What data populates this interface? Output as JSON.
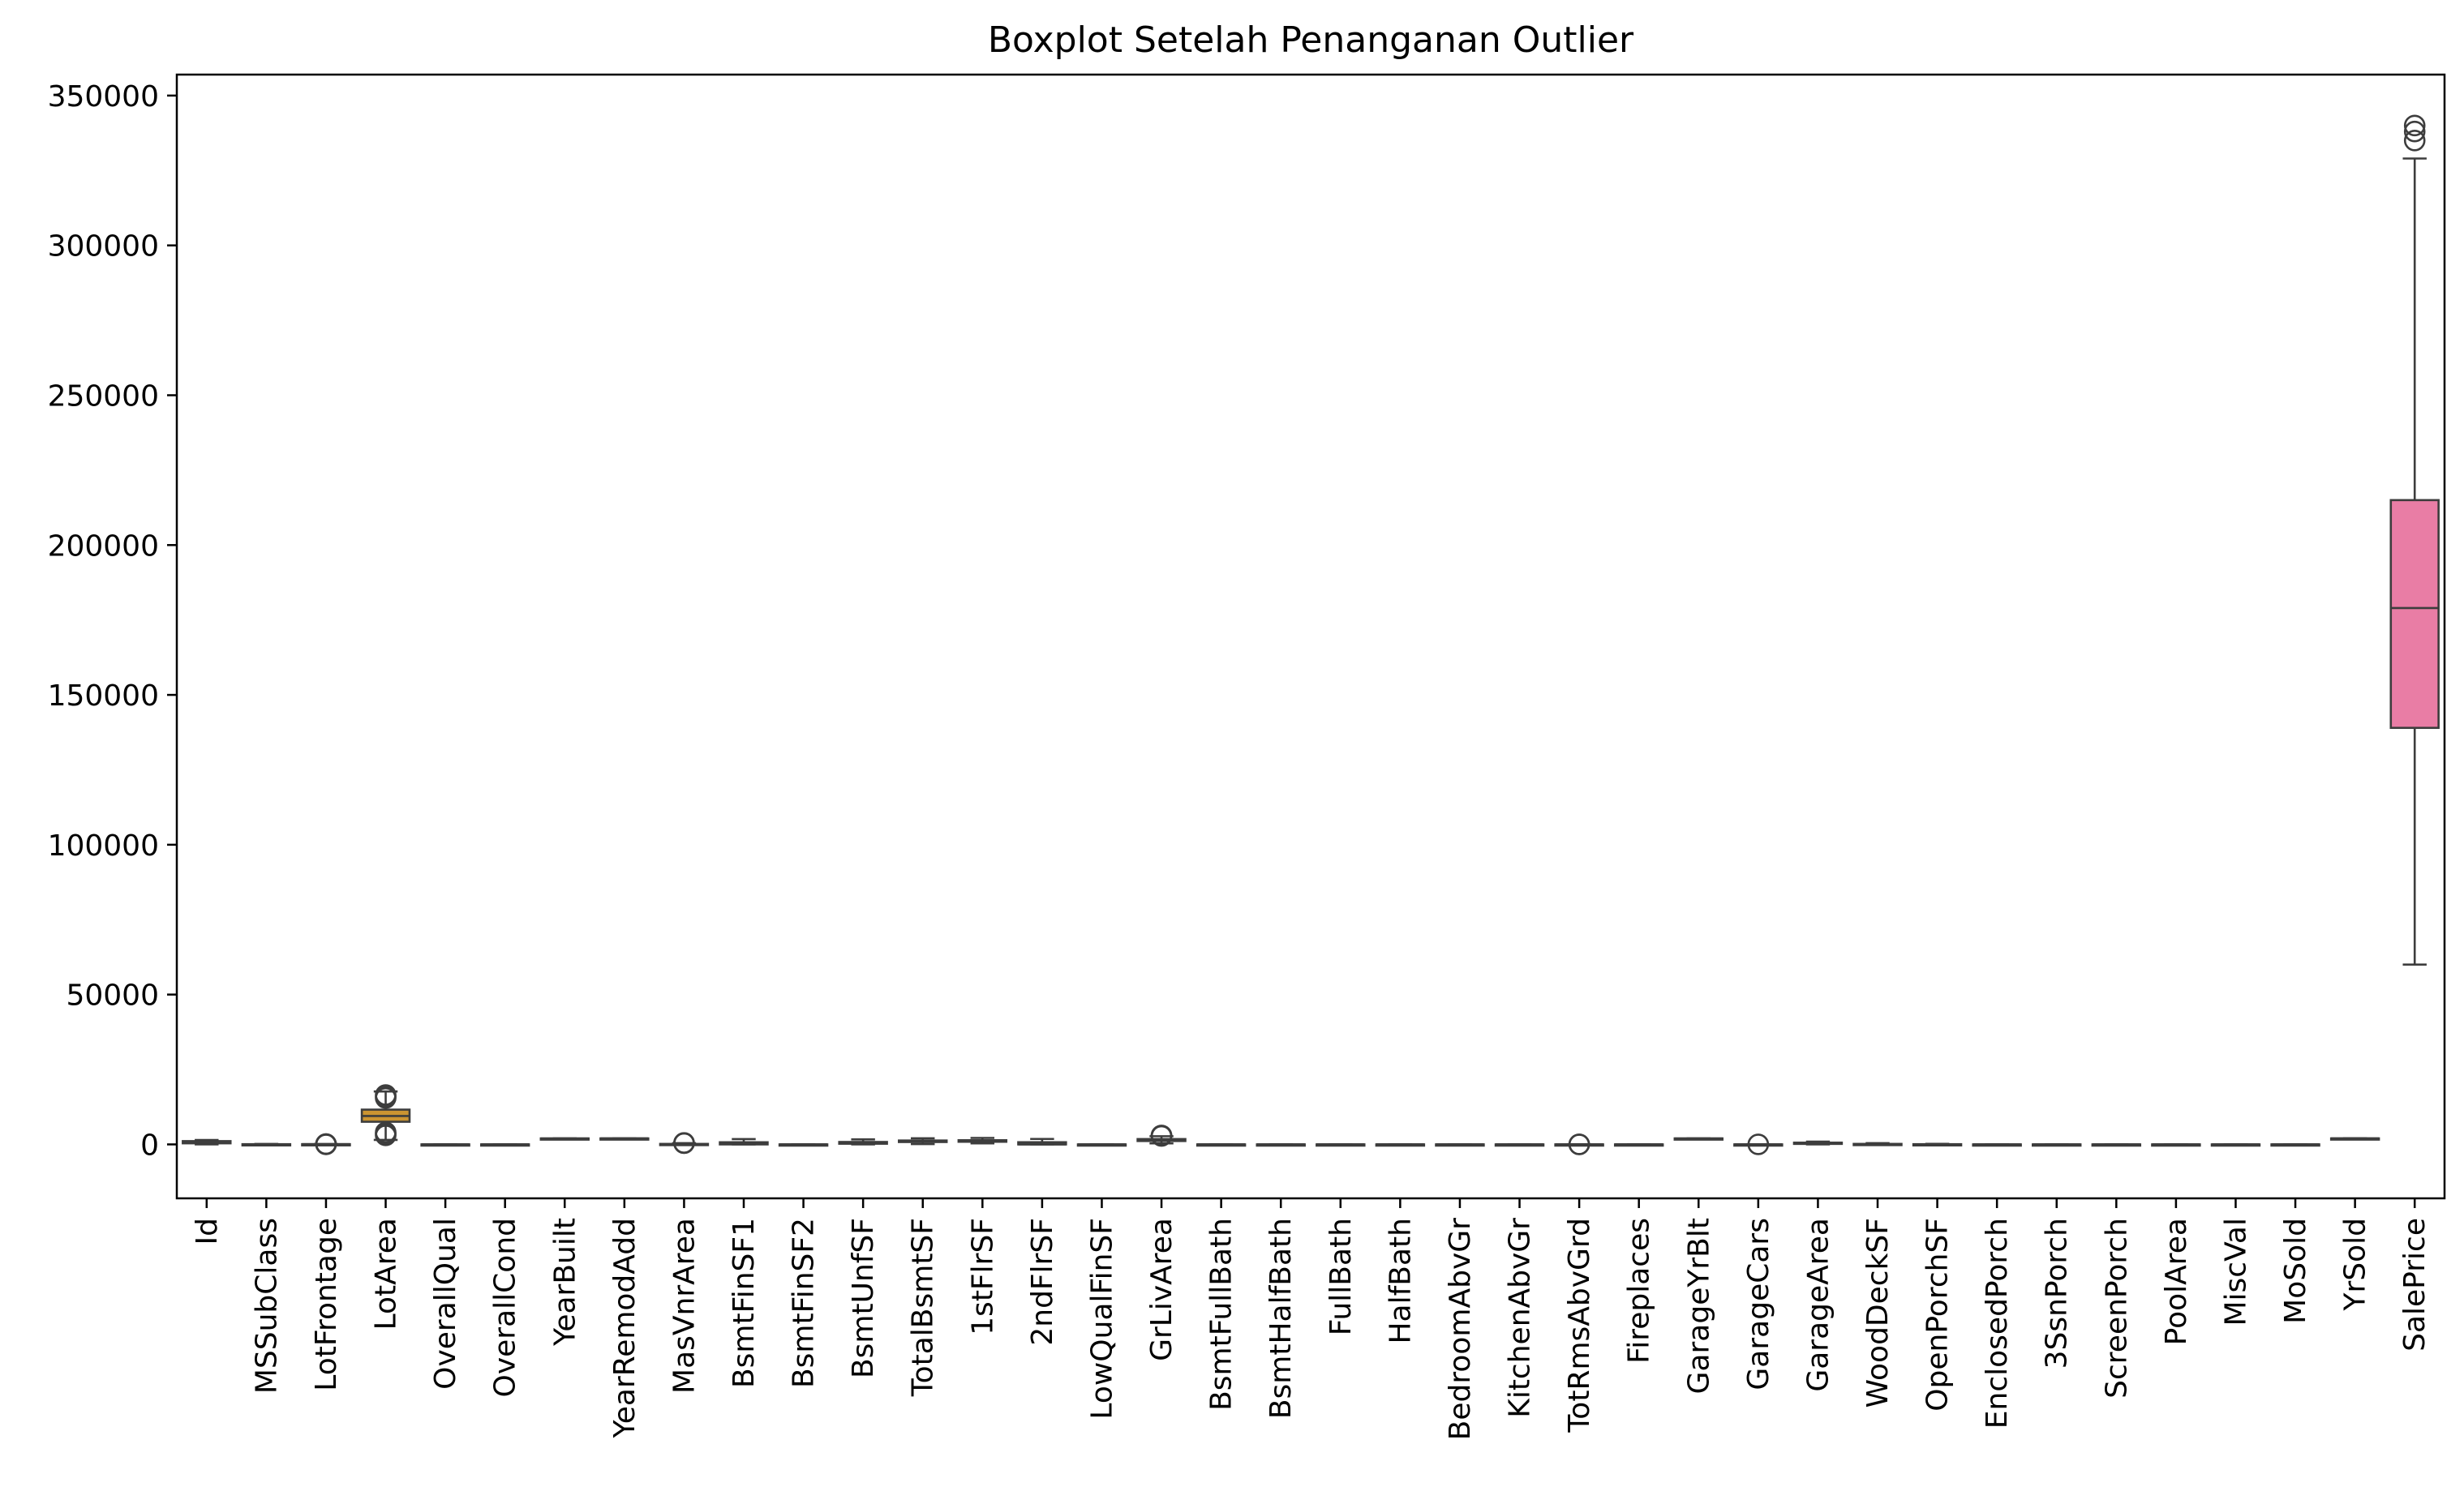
{
  "chart_data": {
    "type": "box",
    "title": "Boxplot Setelah Penanganan Outlier",
    "xlabel": "",
    "ylabel": "",
    "ylim": [
      -18000,
      357000
    ],
    "yticks": [
      0,
      50000,
      100000,
      150000,
      200000,
      250000,
      300000,
      350000
    ],
    "ytick_labels": [
      "0",
      "50000",
      "100000",
      "150000",
      "200000",
      "250000",
      "300000",
      "350000"
    ],
    "grid": false,
    "legend": "none",
    "categories": [
      "Id",
      "MSSubClass",
      "LotFrontage",
      "LotArea",
      "OverallQual",
      "OverallCond",
      "YearBuilt",
      "YearRemodAdd",
      "MasVnrArea",
      "BsmtFinSF1",
      "BsmtFinSF2",
      "BsmtUnfSF",
      "TotalBsmtSF",
      "1stFlrSF",
      "2ndFlrSF",
      "LowQualFinSF",
      "GrLivArea",
      "BsmtFullBath",
      "BsmtHalfBath",
      "FullBath",
      "HalfBath",
      "BedroomAbvGr",
      "KitchenAbvGr",
      "TotRmsAbvGrd",
      "Fireplaces",
      "GarageYrBlt",
      "GarageCars",
      "GarageArea",
      "WoodDeckSF",
      "OpenPorchSF",
      "EnclosedPorch",
      "3SsnPorch",
      "ScreenPorch",
      "PoolArea",
      "MiscVal",
      "MoSold",
      "YrSold",
      "SalePrice"
    ],
    "colors": [
      "#f77189",
      "#f47c4c",
      "#e0882e",
      "#cb9431",
      "#bb9a31",
      "#a99f31",
      "#9aa431",
      "#85aa31",
      "#5daf31",
      "#32b25e",
      "#34b07d",
      "#35ae8f",
      "#36ad9b",
      "#37aba6",
      "#38aab0",
      "#39a8bb",
      "#3aa6c8",
      "#3ca3d6",
      "#409ee8",
      "#6f97f4",
      "#8f8ff4",
      "#a685f4",
      "#bb7af4",
      "#cf6ef4",
      "#e463f4",
      "#f25ee4",
      "#f564d1",
      "#f569c1",
      "#f66db3",
      "#f671a5",
      "#f77189",
      "#f47c4c",
      "#e0882e",
      "#cb9431",
      "#bb9a31",
      "#a99f31",
      "#9aa431",
      "#e97da5"
    ],
    "series": [
      {
        "name": "Id",
        "q1": 365,
        "median": 730,
        "q3": 1095,
        "whislo": 1,
        "whishi": 1460,
        "fliers": []
      },
      {
        "name": "MSSubClass",
        "q1": 20,
        "median": 50,
        "q3": 70,
        "whislo": 20,
        "whishi": 145,
        "fliers": []
      },
      {
        "name": "LotFrontage",
        "q1": 60,
        "median": 69,
        "q3": 79,
        "whislo": 31,
        "whishi": 107,
        "fliers": [
          21,
          24,
          111,
          112
        ]
      },
      {
        "name": "LotArea",
        "q1": 7554,
        "median": 9478,
        "q3": 11601,
        "whislo": 1491,
        "whishi": 17671,
        "fliers": [
          15500,
          16000,
          16500,
          3000,
          3500,
          4000
        ]
      },
      {
        "name": "OverallQual",
        "q1": 5,
        "median": 6,
        "q3": 7,
        "whislo": 2,
        "whishi": 10,
        "fliers": []
      },
      {
        "name": "OverallCond",
        "q1": 5,
        "median": 5,
        "q3": 6,
        "whislo": 4,
        "whishi": 7,
        "fliers": []
      },
      {
        "name": "YearBuilt",
        "q1": 1954,
        "median": 1973,
        "q3": 2000,
        "whislo": 1885,
        "whishi": 2010,
        "fliers": []
      },
      {
        "name": "YearRemodAdd",
        "q1": 1967,
        "median": 1994,
        "q3": 2004,
        "whislo": 1950,
        "whishi": 2010,
        "fliers": []
      },
      {
        "name": "MasVnrArea",
        "q1": 0,
        "median": 0,
        "q3": 164,
        "whislo": 0,
        "whishi": 410,
        "fliers": [
          420,
          450,
          480
        ]
      },
      {
        "name": "BsmtFinSF1",
        "q1": 0,
        "median": 384,
        "q3": 712,
        "whislo": 0,
        "whishi": 1780,
        "fliers": []
      },
      {
        "name": "BsmtFinSF2",
        "q1": 0,
        "median": 0,
        "q3": 0,
        "whislo": 0,
        "whishi": 0,
        "fliers": []
      },
      {
        "name": "BsmtUnfSF",
        "q1": 224,
        "median": 478,
        "q3": 808,
        "whislo": 0,
        "whishi": 1680,
        "fliers": []
      },
      {
        "name": "TotalBsmtSF",
        "q1": 796,
        "median": 992,
        "q3": 1298,
        "whislo": 105,
        "whishi": 2046,
        "fliers": []
      },
      {
        "name": "1stFlrSF",
        "q1": 882,
        "median": 1087,
        "q3": 1391,
        "whislo": 334,
        "whishi": 2154,
        "fliers": []
      },
      {
        "name": "2ndFlrSF",
        "q1": 0,
        "median": 0,
        "q3": 728,
        "whislo": 0,
        "whishi": 1818,
        "fliers": []
      },
      {
        "name": "LowQualFinSF",
        "q1": 0,
        "median": 0,
        "q3": 0,
        "whislo": 0,
        "whishi": 0,
        "fliers": []
      },
      {
        "name": "GrLivArea",
        "q1": 1130,
        "median": 1464,
        "q3": 1777,
        "whislo": 334,
        "whishi": 2730,
        "fliers": [
          2800,
          2900,
          3000
        ]
      },
      {
        "name": "BsmtFullBath",
        "q1": 0,
        "median": 0,
        "q3": 1,
        "whislo": 0,
        "whishi": 2,
        "fliers": []
      },
      {
        "name": "BsmtHalfBath",
        "q1": 0,
        "median": 0,
        "q3": 0,
        "whislo": 0,
        "whishi": 0,
        "fliers": []
      },
      {
        "name": "FullBath",
        "q1": 1,
        "median": 2,
        "q3": 2,
        "whislo": 0,
        "whishi": 3,
        "fliers": []
      },
      {
        "name": "HalfBath",
        "q1": 0,
        "median": 0,
        "q3": 1,
        "whislo": 0,
        "whishi": 2,
        "fliers": []
      },
      {
        "name": "BedroomAbvGr",
        "q1": 2,
        "median": 3,
        "q3": 3,
        "whislo": 1,
        "whishi": 4,
        "fliers": []
      },
      {
        "name": "KitchenAbvGr",
        "q1": 1,
        "median": 1,
        "q3": 1,
        "whislo": 1,
        "whishi": 1,
        "fliers": []
      },
      {
        "name": "TotRmsAbvGrd",
        "q1": 5,
        "median": 6,
        "q3": 7,
        "whislo": 2,
        "whishi": 10,
        "fliers": [
          11,
          12
        ]
      },
      {
        "name": "Fireplaces",
        "q1": 0,
        "median": 1,
        "q3": 1,
        "whislo": 0,
        "whishi": 2,
        "fliers": []
      },
      {
        "name": "GarageYrBlt",
        "q1": 1961,
        "median": 1980,
        "q3": 2002,
        "whislo": 1900,
        "whishi": 2010,
        "fliers": []
      },
      {
        "name": "GarageCars",
        "q1": 1,
        "median": 2,
        "q3": 2,
        "whislo": 0,
        "whishi": 3,
        "fliers": [
          4
        ]
      },
      {
        "name": "GarageArea",
        "q1": 334,
        "median": 480,
        "q3": 576,
        "whislo": 0,
        "whishi": 938,
        "fliers": []
      },
      {
        "name": "WoodDeckSF",
        "q1": 0,
        "median": 0,
        "q3": 168,
        "whislo": 0,
        "whishi": 420,
        "fliers": []
      },
      {
        "name": "OpenPorchSF",
        "q1": 0,
        "median": 25,
        "q3": 68,
        "whislo": 0,
        "whishi": 170,
        "fliers": []
      },
      {
        "name": "EnclosedPorch",
        "q1": 0,
        "median": 0,
        "q3": 0,
        "whislo": 0,
        "whishi": 0,
        "fliers": []
      },
      {
        "name": "3SsnPorch",
        "q1": 0,
        "median": 0,
        "q3": 0,
        "whislo": 0,
        "whishi": 0,
        "fliers": []
      },
      {
        "name": "ScreenPorch",
        "q1": 0,
        "median": 0,
        "q3": 0,
        "whislo": 0,
        "whishi": 0,
        "fliers": []
      },
      {
        "name": "PoolArea",
        "q1": 0,
        "median": 0,
        "q3": 0,
        "whislo": 0,
        "whishi": 0,
        "fliers": []
      },
      {
        "name": "MiscVal",
        "q1": 0,
        "median": 0,
        "q3": 0,
        "whislo": 0,
        "whishi": 0,
        "fliers": []
      },
      {
        "name": "MoSold",
        "q1": 5,
        "median": 6,
        "q3": 8,
        "whislo": 1,
        "whishi": 12,
        "fliers": []
      },
      {
        "name": "YrSold",
        "q1": 2007,
        "median": 2008,
        "q3": 2009,
        "whislo": 2006,
        "whishi": 2010,
        "fliers": []
      },
      {
        "name": "SalePrice",
        "q1": 139000,
        "median": 179000,
        "q3": 215000,
        "whislo": 60000,
        "whishi": 329000,
        "fliers": [
          335000,
          338000,
          340000
        ]
      }
    ]
  }
}
